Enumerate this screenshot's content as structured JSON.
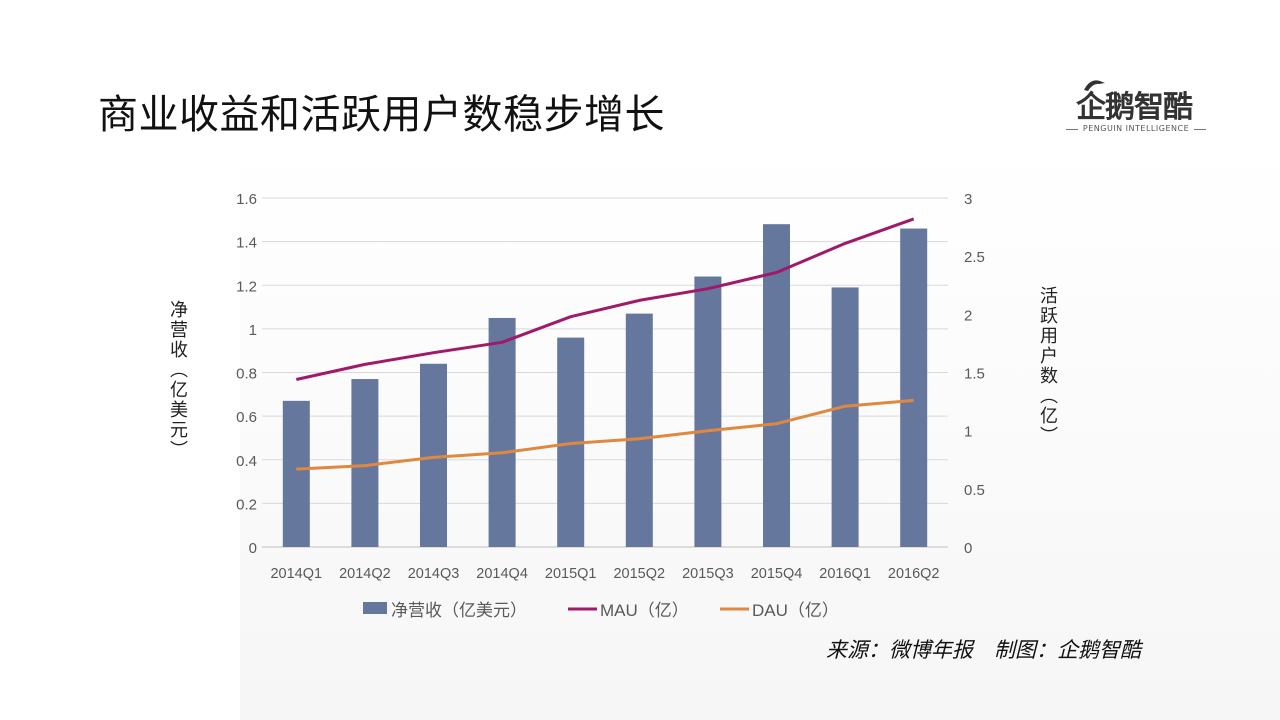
{
  "title": "商业收益和活跃用户数稳步增长",
  "logo": {
    "name": "企鹅智酷",
    "subtitle": "PENGUIN INTELLIGENCE",
    "icon": "penguin-icon"
  },
  "source": "来源：微博年报　制图：企鹅智酷",
  "colors": {
    "bar": "#66779E",
    "mau": "#A0196B",
    "dau": "#E08840",
    "grid": "#D9D9D9",
    "axis_text": "#595959"
  },
  "chart_data": {
    "type": "bar",
    "categories": [
      "2014Q1",
      "2014Q2",
      "2014Q3",
      "2014Q4",
      "2015Q1",
      "2015Q2",
      "2015Q3",
      "2015Q4",
      "2016Q1",
      "2016Q2"
    ],
    "series": [
      {
        "name": "净营收（亿美元）",
        "type": "bar",
        "axis": "left",
        "values": [
          0.67,
          0.77,
          0.84,
          1.05,
          0.96,
          1.07,
          1.24,
          1.48,
          1.19,
          1.46
        ]
      },
      {
        "name": "MAU（亿）",
        "type": "line",
        "axis": "right",
        "values": [
          1.44,
          1.57,
          1.67,
          1.76,
          1.98,
          2.12,
          2.22,
          2.36,
          2.61,
          2.82
        ]
      },
      {
        "name": "DAU（亿）",
        "type": "line",
        "axis": "right",
        "values": [
          0.67,
          0.7,
          0.77,
          0.81,
          0.89,
          0.93,
          1.0,
          1.06,
          1.21,
          1.26
        ]
      }
    ],
    "ylabel": "净营收（亿美元）",
    "ylabel_right": "活跃用户数（亿）",
    "ylim": [
      0,
      1.6
    ],
    "yticks": [
      "0",
      "0.2",
      "0.4",
      "0.6",
      "0.8",
      "1",
      "1.2",
      "1.4",
      "1.6"
    ],
    "ylim_right": [
      0,
      3
    ],
    "yticks_right": [
      "0",
      "0.5",
      "1",
      "1.5",
      "2",
      "2.5",
      "3"
    ],
    "grid": true,
    "legend_position": "bottom"
  }
}
